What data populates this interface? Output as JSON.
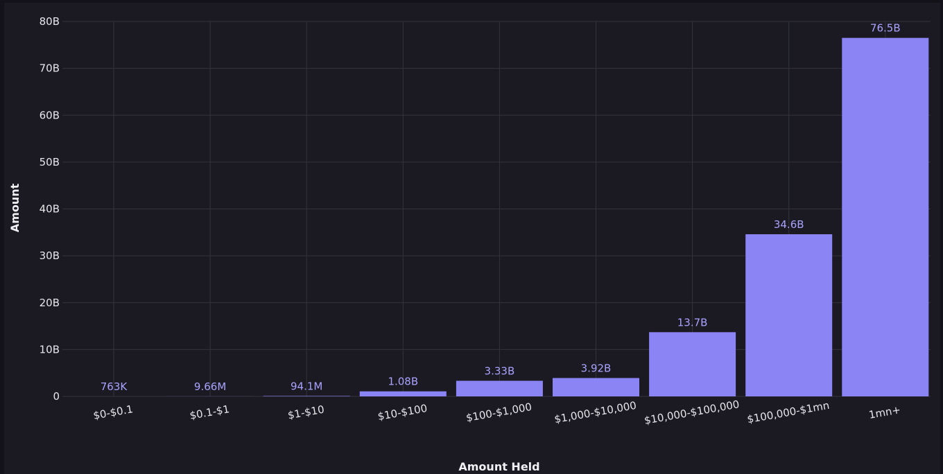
{
  "colors": {
    "bar": "#8b84f4",
    "label": "#a9a3ff",
    "grid": "#34333d",
    "background": "#1b1a22"
  },
  "chart_data": {
    "type": "bar",
    "title": "",
    "xlabel": "Amount Held",
    "ylabel": "Amount",
    "ylim": [
      0,
      80
    ],
    "ytick_values": [
      0,
      10,
      20,
      30,
      40,
      50,
      60,
      70,
      80
    ],
    "ytick_labels": [
      "0",
      "10B",
      "20B",
      "30B",
      "40B",
      "50B",
      "60B",
      "70B",
      "80B"
    ],
    "y_unit": "billions",
    "grid": true,
    "legend": "none",
    "categories": [
      "$0-$0.1",
      "$0.1-$1",
      "$1-$10",
      "$10-$100",
      "$100-$1,000",
      "$1,000-$10,000",
      "$10,000-$100,000",
      "$100,000-$1mn",
      "1mn+"
    ],
    "values": [
      0.000763,
      0.00966,
      0.0941,
      1.08,
      3.33,
      3.92,
      13.7,
      34.6,
      76.5
    ],
    "data_labels": [
      "763K",
      "9.66M",
      "94.1M",
      "1.08B",
      "3.33B",
      "3.92B",
      "13.7B",
      "34.6B",
      "76.5B"
    ]
  }
}
